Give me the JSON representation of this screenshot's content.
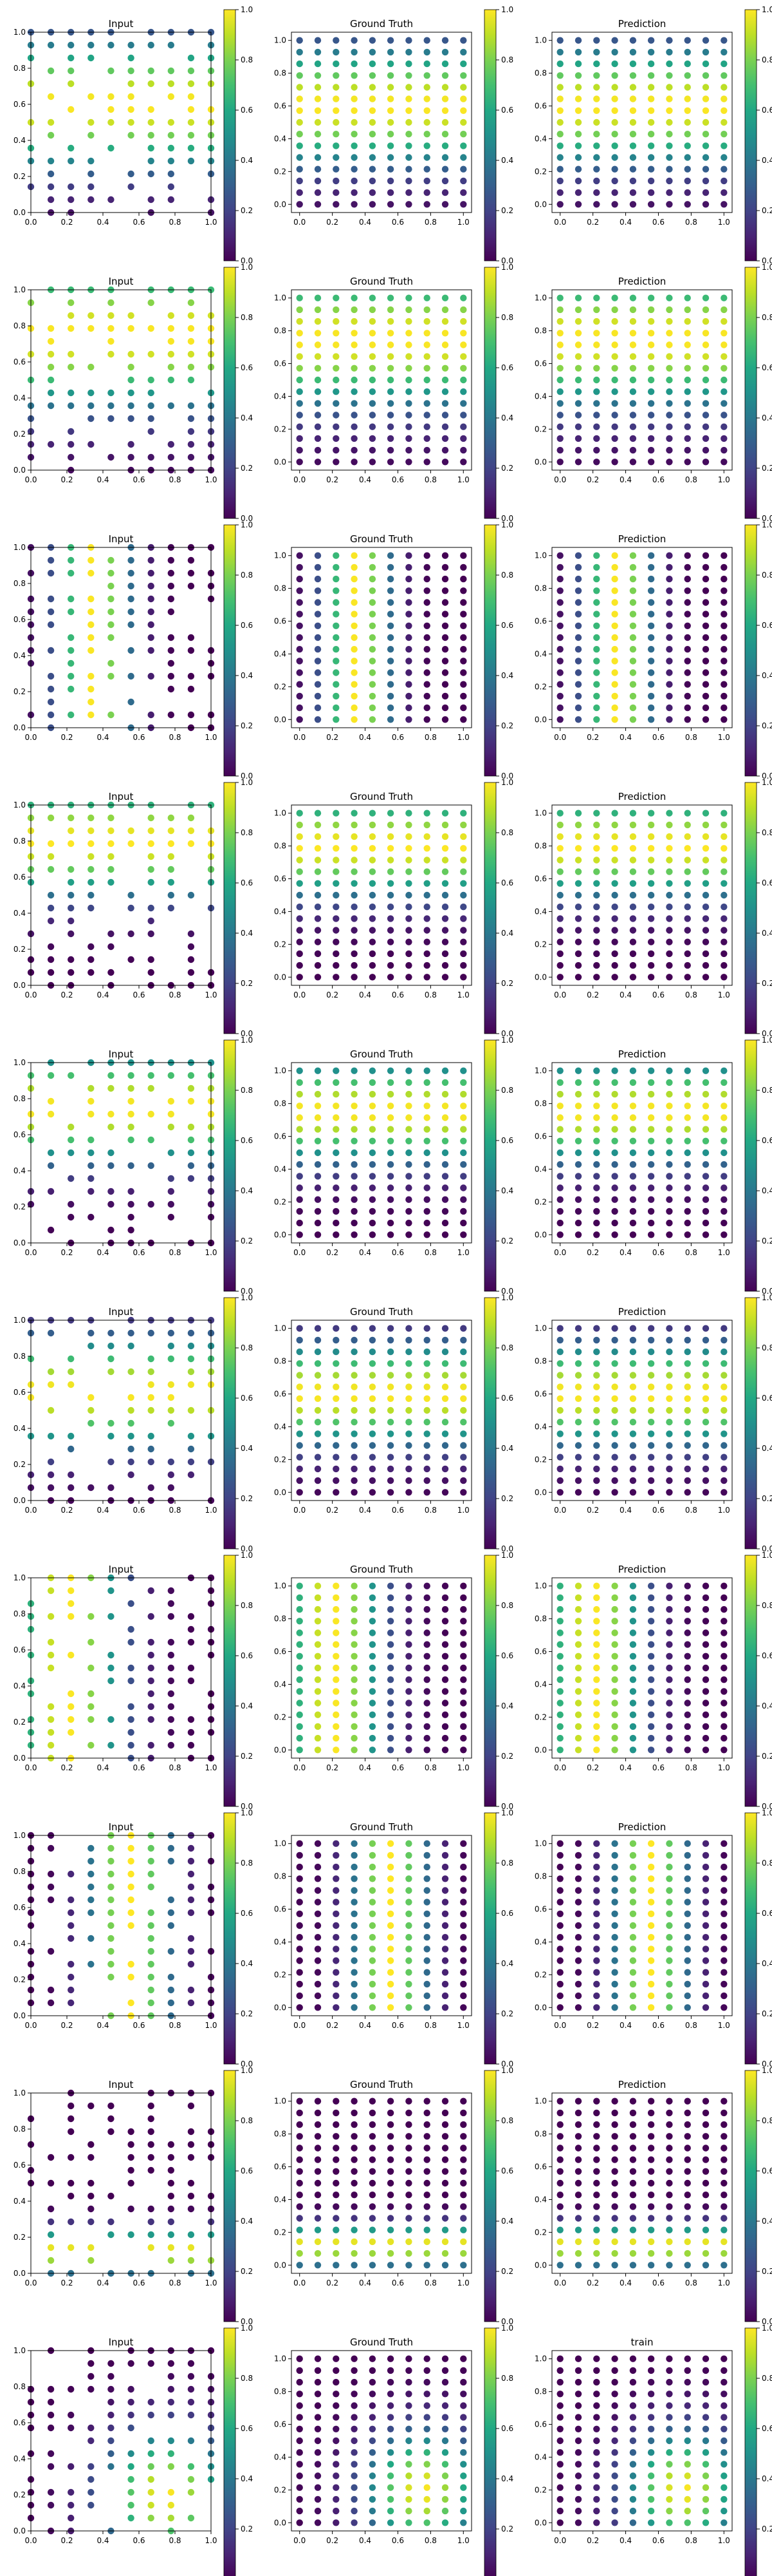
{
  "figure": {
    "colormap": "viridis",
    "colorbar_ticks": [
      "0.0",
      "0.2",
      "0.4",
      "0.6",
      "0.8",
      "1.0"
    ],
    "grid": false
  },
  "chart_data": [
    {
      "row": 0,
      "type": "scatter",
      "panels": [
        {
          "title": "Input",
          "xlim": [
            0,
            1
          ],
          "ylim": [
            0,
            1
          ],
          "xticks": [
            "0.0",
            "0.2",
            "0.4",
            "0.6",
            "0.8",
            "1.0"
          ],
          "yticks": [
            "0.0",
            "0.2",
            "0.4",
            "0.6",
            "0.8",
            "1.0"
          ],
          "field": {
            "kind": "y",
            "center": 0.6,
            "width": 0.35
          },
          "sparse": true,
          "seed": 11
        },
        {
          "title": "Ground Truth",
          "xlim": [
            -0.05,
            1.05
          ],
          "ylim": [
            -0.05,
            1.05
          ],
          "xticks": [
            "0.0",
            "0.2",
            "0.4",
            "0.6",
            "0.8",
            "1.0"
          ],
          "yticks": [
            "0.0",
            "0.2",
            "0.4",
            "0.6",
            "0.8",
            "1.0"
          ],
          "field": {
            "kind": "y",
            "center": 0.6,
            "width": 0.35
          }
        },
        {
          "title": "Prediction",
          "xlim": [
            -0.05,
            1.05
          ],
          "ylim": [
            -0.05,
            1.05
          ],
          "xticks": [
            "0.0",
            "0.2",
            "0.4",
            "0.6",
            "0.8",
            "1.0"
          ],
          "yticks": [
            "0.0",
            "0.2",
            "0.4",
            "0.6",
            "0.8",
            "1.0"
          ],
          "field": {
            "kind": "y",
            "center": 0.6,
            "width": 0.35
          }
        }
      ]
    },
    {
      "row": 1,
      "type": "scatter",
      "panels": [
        {
          "title": "Input",
          "xlim": [
            0,
            1
          ],
          "ylim": [
            0,
            1
          ],
          "xticks": [
            "0.0",
            "0.2",
            "0.4",
            "0.6",
            "0.8",
            "1.0"
          ],
          "yticks": [
            "0.0",
            "0.2",
            "0.4",
            "0.6",
            "0.8",
            "1.0"
          ],
          "field": {
            "kind": "y",
            "center": 0.75,
            "width": 0.4
          },
          "sparse": true,
          "seed": 23
        },
        {
          "title": "Ground Truth",
          "xlim": [
            -0.05,
            1.05
          ],
          "ylim": [
            -0.05,
            1.05
          ],
          "xticks": [
            "0.0",
            "0.2",
            "0.4",
            "0.6",
            "0.8",
            "1.0"
          ],
          "yticks": [
            "0.0",
            "0.2",
            "0.4",
            "0.6",
            "0.8",
            "1.0"
          ],
          "field": {
            "kind": "y",
            "center": 0.75,
            "width": 0.4
          }
        },
        {
          "title": "Prediction",
          "xlim": [
            -0.05,
            1.05
          ],
          "ylim": [
            -0.05,
            1.05
          ],
          "xticks": [
            "0.0",
            "0.2",
            "0.4",
            "0.6",
            "0.8",
            "1.0"
          ],
          "yticks": [
            "0.0",
            "0.2",
            "0.4",
            "0.6",
            "0.8",
            "1.0"
          ],
          "field": {
            "kind": "y",
            "center": 0.75,
            "width": 0.4
          }
        }
      ]
    },
    {
      "row": 2,
      "type": "scatter",
      "panels": [
        {
          "title": "Input",
          "xlim": [
            0,
            1
          ],
          "ylim": [
            0,
            1
          ],
          "xticks": [
            "0.0",
            "0.2",
            "0.4",
            "0.6",
            "0.8",
            "1.0"
          ],
          "yticks": [
            "0.0",
            "0.2",
            "0.4",
            "0.6",
            "0.8",
            "1.0"
          ],
          "field": {
            "kind": "x",
            "center": 0.35,
            "width": 0.2
          },
          "sparse": true,
          "seed": 37
        },
        {
          "title": "Ground Truth",
          "xlim": [
            -0.05,
            1.05
          ],
          "ylim": [
            -0.05,
            1.05
          ],
          "xticks": [
            "0.0",
            "0.2",
            "0.4",
            "0.6",
            "0.8",
            "1.0"
          ],
          "yticks": [
            "0.0",
            "0.2",
            "0.4",
            "0.6",
            "0.8",
            "1.0"
          ],
          "field": {
            "kind": "x",
            "center": 0.35,
            "width": 0.2
          }
        },
        {
          "title": "Prediction",
          "xlim": [
            -0.05,
            1.05
          ],
          "ylim": [
            -0.05,
            1.05
          ],
          "xticks": [
            "0.0",
            "0.2",
            "0.4",
            "0.6",
            "0.8",
            "1.0"
          ],
          "yticks": [
            "0.0",
            "0.2",
            "0.4",
            "0.6",
            "0.8",
            "1.0"
          ],
          "field": {
            "kind": "x",
            "center": 0.35,
            "width": 0.2
          }
        }
      ]
    },
    {
      "row": 3,
      "type": "scatter",
      "panels": [
        {
          "title": "Input",
          "xlim": [
            0,
            1
          ],
          "ylim": [
            0,
            1
          ],
          "xticks": [
            "0.0",
            "0.2",
            "0.4",
            "0.6",
            "0.8",
            "1.0"
          ],
          "yticks": [
            "0.0",
            "0.2",
            "0.4",
            "0.6",
            "0.8",
            "1.0"
          ],
          "field": {
            "kind": "y",
            "center": 0.8,
            "width": 0.3
          },
          "sparse": true,
          "seed": 41
        },
        {
          "title": "Ground Truth",
          "xlim": [
            -0.05,
            1.05
          ],
          "ylim": [
            -0.05,
            1.05
          ],
          "xticks": [
            "0.0",
            "0.2",
            "0.4",
            "0.6",
            "0.8",
            "1.0"
          ],
          "yticks": [
            "0.0",
            "0.2",
            "0.4",
            "0.6",
            "0.8",
            "1.0"
          ],
          "field": {
            "kind": "y",
            "center": 0.8,
            "width": 0.3
          }
        },
        {
          "title": "Prediction",
          "xlim": [
            -0.05,
            1.05
          ],
          "ylim": [
            -0.05,
            1.05
          ],
          "xticks": [
            "0.0",
            "0.2",
            "0.4",
            "0.6",
            "0.8",
            "1.0"
          ],
          "yticks": [
            "0.0",
            "0.2",
            "0.4",
            "0.6",
            "0.8",
            "1.0"
          ],
          "field": {
            "kind": "y",
            "center": 0.8,
            "width": 0.3
          }
        }
      ]
    },
    {
      "row": 4,
      "type": "scatter",
      "panels": [
        {
          "title": "Input",
          "xlim": [
            0,
            1
          ],
          "ylim": [
            0,
            1
          ],
          "xticks": [
            "0.0",
            "0.2",
            "0.4",
            "0.6",
            "0.8",
            "1.0"
          ],
          "yticks": [
            "0.0",
            "0.2",
            "0.4",
            "0.6",
            "0.8",
            "1.0"
          ],
          "field": {
            "kind": "y",
            "center": 0.75,
            "width": 0.3
          },
          "sparse": true,
          "seed": 53
        },
        {
          "title": "Ground Truth",
          "xlim": [
            -0.05,
            1.05
          ],
          "ylim": [
            -0.05,
            1.05
          ],
          "xticks": [
            "0.0",
            "0.2",
            "0.4",
            "0.6",
            "0.8",
            "1.0"
          ],
          "yticks": [
            "0.0",
            "0.2",
            "0.4",
            "0.6",
            "0.8",
            "1.0"
          ],
          "field": {
            "kind": "y",
            "center": 0.75,
            "width": 0.3
          }
        },
        {
          "title": "Prediction",
          "xlim": [
            -0.05,
            1.05
          ],
          "ylim": [
            -0.05,
            1.05
          ],
          "xticks": [
            "0.0",
            "0.2",
            "0.4",
            "0.6",
            "0.8",
            "1.0"
          ],
          "yticks": [
            "0.0",
            "0.2",
            "0.4",
            "0.6",
            "0.8",
            "1.0"
          ],
          "field": {
            "kind": "y",
            "center": 0.75,
            "width": 0.3
          }
        }
      ]
    },
    {
      "row": 5,
      "type": "scatter",
      "panels": [
        {
          "title": "Input",
          "xlim": [
            0,
            1
          ],
          "ylim": [
            0,
            1
          ],
          "xticks": [
            "0.0",
            "0.2",
            "0.4",
            "0.6",
            "0.8",
            "1.0"
          ],
          "yticks": [
            "0.0",
            "0.2",
            "0.4",
            "0.6",
            "0.8",
            "1.0"
          ],
          "field": {
            "kind": "y",
            "center": 0.6,
            "width": 0.3
          },
          "sparse": true,
          "seed": 67
        },
        {
          "title": "Ground Truth",
          "xlim": [
            -0.05,
            1.05
          ],
          "ylim": [
            -0.05,
            1.05
          ],
          "xticks": [
            "0.0",
            "0.2",
            "0.4",
            "0.6",
            "0.8",
            "1.0"
          ],
          "yticks": [
            "0.0",
            "0.2",
            "0.4",
            "0.6",
            "0.8",
            "1.0"
          ],
          "field": {
            "kind": "y",
            "center": 0.6,
            "width": 0.3
          }
        },
        {
          "title": "Prediction",
          "xlim": [
            -0.05,
            1.05
          ],
          "ylim": [
            -0.05,
            1.05
          ],
          "xticks": [
            "0.0",
            "0.2",
            "0.4",
            "0.6",
            "0.8",
            "1.0"
          ],
          "yticks": [
            "0.0",
            "0.2",
            "0.4",
            "0.6",
            "0.8",
            "1.0"
          ],
          "field": {
            "kind": "y",
            "center": 0.6,
            "width": 0.3
          }
        }
      ]
    },
    {
      "row": 6,
      "type": "scatter",
      "panels": [
        {
          "title": "Input",
          "xlim": [
            0,
            1
          ],
          "ylim": [
            0,
            1
          ],
          "xticks": [
            "0.0",
            "0.2",
            "0.4",
            "0.6",
            "0.8",
            "1.0"
          ],
          "yticks": [
            "0.0",
            "0.2",
            "0.4",
            "0.6",
            "0.8",
            "1.0"
          ],
          "field": {
            "kind": "x",
            "center": 0.2,
            "width": 0.3
          },
          "sparse": true,
          "seed": 79
        },
        {
          "title": "Ground Truth",
          "xlim": [
            -0.05,
            1.05
          ],
          "ylim": [
            -0.05,
            1.05
          ],
          "xticks": [
            "0.0",
            "0.2",
            "0.4",
            "0.6",
            "0.8",
            "1.0"
          ],
          "yticks": [
            "0.0",
            "0.2",
            "0.4",
            "0.6",
            "0.8",
            "1.0"
          ],
          "field": {
            "kind": "x",
            "center": 0.2,
            "width": 0.3
          }
        },
        {
          "title": "Prediction",
          "xlim": [
            -0.05,
            1.05
          ],
          "ylim": [
            -0.05,
            1.05
          ],
          "xticks": [
            "0.0",
            "0.2",
            "0.4",
            "0.6",
            "0.8",
            "1.0"
          ],
          "yticks": [
            "0.0",
            "0.2",
            "0.4",
            "0.6",
            "0.8",
            "1.0"
          ],
          "field": {
            "kind": "x",
            "center": 0.2,
            "width": 0.3
          }
        }
      ]
    },
    {
      "row": 7,
      "type": "scatter",
      "panels": [
        {
          "title": "Input",
          "xlim": [
            0,
            1
          ],
          "ylim": [
            0,
            1
          ],
          "xticks": [
            "0.0",
            "0.2",
            "0.4",
            "0.6",
            "0.8",
            "1.0"
          ],
          "yticks": [
            "0.0",
            "0.2",
            "0.4",
            "0.6",
            "0.8",
            "1.0"
          ],
          "field": {
            "kind": "x",
            "center": 0.55,
            "width": 0.22
          },
          "sparse": true,
          "seed": 83
        },
        {
          "title": "Ground Truth",
          "xlim": [
            -0.05,
            1.05
          ],
          "ylim": [
            -0.05,
            1.05
          ],
          "xticks": [
            "0.0",
            "0.2",
            "0.4",
            "0.6",
            "0.8",
            "1.0"
          ],
          "yticks": [
            "0.0",
            "0.2",
            "0.4",
            "0.6",
            "0.8",
            "1.0"
          ],
          "field": {
            "kind": "x",
            "center": 0.55,
            "width": 0.22
          }
        },
        {
          "title": "Prediction",
          "xlim": [
            -0.05,
            1.05
          ],
          "ylim": [
            -0.05,
            1.05
          ],
          "xticks": [
            "0.0",
            "0.2",
            "0.4",
            "0.6",
            "0.8",
            "1.0"
          ],
          "yticks": [
            "0.0",
            "0.2",
            "0.4",
            "0.6",
            "0.8",
            "1.0"
          ],
          "field": {
            "kind": "x",
            "center": 0.55,
            "width": 0.22
          }
        }
      ]
    },
    {
      "row": 8,
      "type": "scatter",
      "panels": [
        {
          "title": "Input",
          "xlim": [
            0,
            1
          ],
          "ylim": [
            0,
            1
          ],
          "xticks": [
            "0.0",
            "0.2",
            "0.4",
            "0.6",
            "0.8",
            "1.0"
          ],
          "yticks": [
            "0.0",
            "0.2",
            "0.4",
            "0.6",
            "0.8",
            "1.0"
          ],
          "field": {
            "kind": "y",
            "center": 0.12,
            "width": 0.12
          },
          "sparse": true,
          "seed": 97
        },
        {
          "title": "Ground Truth",
          "xlim": [
            -0.05,
            1.05
          ],
          "ylim": [
            -0.05,
            1.05
          ],
          "xticks": [
            "0.0",
            "0.2",
            "0.4",
            "0.6",
            "0.8",
            "1.0"
          ],
          "yticks": [
            "0.0",
            "0.2",
            "0.4",
            "0.6",
            "0.8",
            "1.0"
          ],
          "field": {
            "kind": "y",
            "center": 0.12,
            "width": 0.12
          }
        },
        {
          "title": "Prediction",
          "xlim": [
            -0.05,
            1.05
          ],
          "ylim": [
            -0.05,
            1.05
          ],
          "xticks": [
            "0.0",
            "0.2",
            "0.4",
            "0.6",
            "0.8",
            "1.0"
          ],
          "yticks": [
            "0.0",
            "0.2",
            "0.4",
            "0.6",
            "0.8",
            "1.0"
          ],
          "field": {
            "kind": "y",
            "center": 0.12,
            "width": 0.12
          }
        }
      ]
    },
    {
      "row": 9,
      "type": "scatter",
      "panels": [
        {
          "title": "Input",
          "xlim": [
            0,
            1
          ],
          "ylim": [
            0,
            1
          ],
          "xticks": [
            "0.0",
            "0.2",
            "0.4",
            "0.6",
            "0.8",
            "1.0"
          ],
          "yticks": [
            "0.0",
            "0.2",
            "0.4",
            "0.6",
            "0.8",
            "1.0"
          ],
          "field": {
            "kind": "xy",
            "cx": 0.75,
            "cy": 0.2,
            "width": 0.35
          },
          "sparse": true,
          "seed": 101
        },
        {
          "title": "Ground Truth",
          "xlim": [
            -0.05,
            1.05
          ],
          "ylim": [
            -0.05,
            1.05
          ],
          "xticks": [
            "0.0",
            "0.2",
            "0.4",
            "0.6",
            "0.8",
            "1.0"
          ],
          "yticks": [
            "0.0",
            "0.2",
            "0.4",
            "0.6",
            "0.8",
            "1.0"
          ],
          "field": {
            "kind": "xy",
            "cx": 0.75,
            "cy": 0.2,
            "width": 0.35
          }
        },
        {
          "title": "train",
          "xlim": [
            -0.05,
            1.05
          ],
          "ylim": [
            -0.05,
            1.05
          ],
          "xticks": [
            "0.0",
            "0.2",
            "0.4",
            "0.6",
            "0.8",
            "1.0"
          ],
          "yticks": [
            "0.0",
            "0.2",
            "0.4",
            "0.6",
            "0.8",
            "1.0"
          ],
          "field": {
            "kind": "xy",
            "cx": 0.75,
            "cy": 0.2,
            "width": 0.35
          }
        }
      ]
    }
  ]
}
